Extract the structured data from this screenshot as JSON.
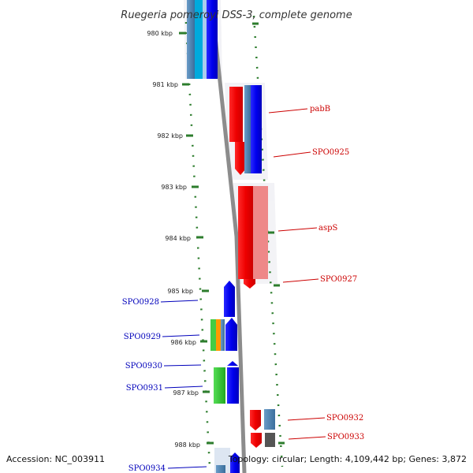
{
  "header": {
    "title": "Ruegeria pomeroyi DSS-3, complete genome"
  },
  "footer": {
    "accession": "Accession: NC_003911",
    "summary": "Topology: circular; Length: 4,109,442 bp; Genes: 3,872"
  },
  "scale": {
    "ticks": [
      "980 kbp",
      "981 kbp",
      "982 kbp",
      "983 kbp",
      "984 kbp",
      "985 kbp",
      "986 kbp",
      "987 kbp",
      "988 kbp"
    ]
  },
  "genes": {
    "right": [
      "pabB",
      "SPO0925",
      "aspS",
      "SPO0927",
      "SPO0932",
      "SPO0933"
    ],
    "left": [
      "SPO0928",
      "SPO0929",
      "SPO0930",
      "SPO0931",
      "SPO0934"
    ]
  },
  "colors": {
    "backbone": "#8c8c8c",
    "ruler": "#2d7d2d",
    "forward_label": "#cc0000",
    "reverse_label": "#0000bb",
    "red": "#ff0000",
    "blue": "#0000ff",
    "steelblue": "#4682b4",
    "green": "#33cc33"
  }
}
